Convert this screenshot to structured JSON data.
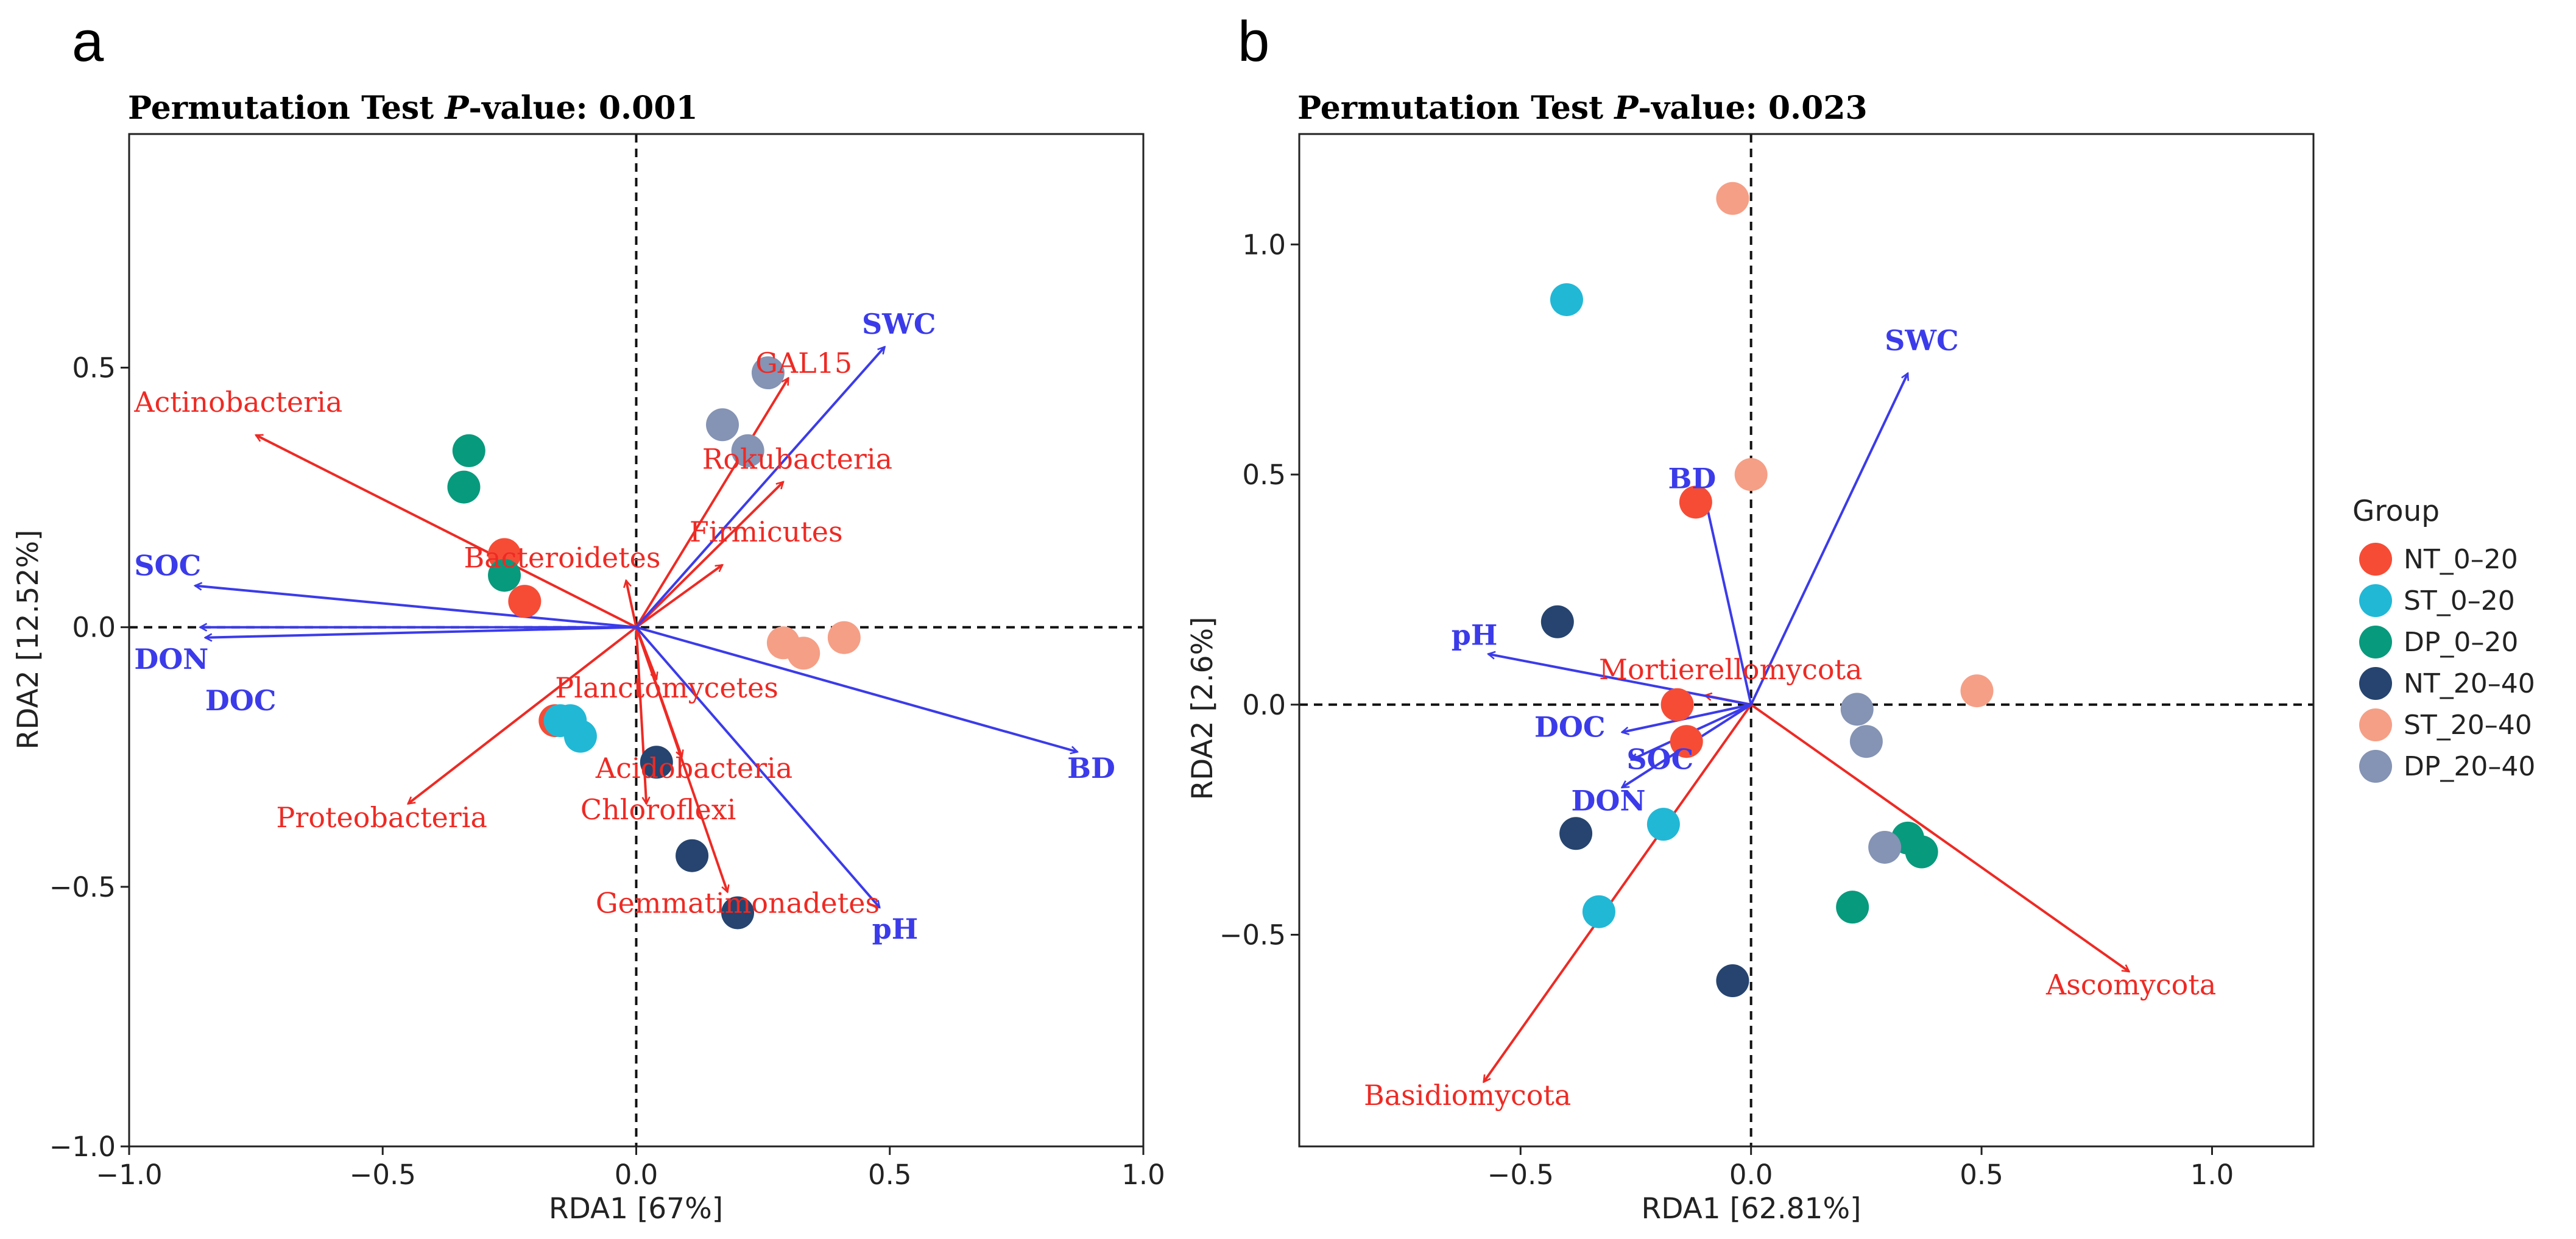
{
  "chart_data": [
    {
      "type": "scatter",
      "panel_letter": "a",
      "title_prefix": "Permutation Test ",
      "title_p": "P",
      "title_suffix": "-value: 0.001",
      "xlabel": "RDA1 [67%]",
      "ylabel": "RDA2 [12.52%]",
      "xlim": [
        -1.0,
        1.0
      ],
      "ylim": [
        -1.0,
        0.95
      ],
      "xticks": [
        -1.0,
        -0.5,
        0.0,
        0.5,
        1.0
      ],
      "xtick_labels": [
        "−1.0",
        "−0.5",
        "0.0",
        "0.5",
        "1.0"
      ],
      "yticks": [
        -1.0,
        -0.5,
        0.0,
        0.5
      ],
      "ytick_labels": [
        "−1.0",
        "−0.5",
        "0.0",
        "0.5"
      ],
      "species_vectors": [
        {
          "name": "Actinobacteria",
          "x": -0.75,
          "y": 0.37,
          "lx": -0.99,
          "ly": 0.415
        },
        {
          "name": "GAL15",
          "x": 0.3,
          "y": 0.48,
          "lx": 0.235,
          "ly": 0.49
        },
        {
          "name": "Rokubacteria",
          "x": 0.29,
          "y": 0.28,
          "lx": 0.13,
          "ly": 0.305
        },
        {
          "name": "Firmicutes",
          "x": 0.17,
          "y": 0.12,
          "lx": 0.105,
          "ly": 0.165
        },
        {
          "name": "Bacteroidetes",
          "x": -0.02,
          "y": 0.09,
          "lx": -0.34,
          "ly": 0.115
        },
        {
          "name": "Planctomycetes",
          "x": 0.04,
          "y": -0.1,
          "lx": -0.16,
          "ly": -0.135
        },
        {
          "name": "Acidobacteria",
          "x": 0.09,
          "y": -0.25,
          "lx": -0.08,
          "ly": -0.29
        },
        {
          "name": "Chloroflexi",
          "x": 0.02,
          "y": -0.34,
          "lx": -0.11,
          "ly": -0.37
        },
        {
          "name": "Gemmatimonadetes",
          "x": 0.18,
          "y": -0.51,
          "lx": -0.08,
          "ly": -0.55
        },
        {
          "name": "Proteobacteria",
          "x": -0.45,
          "y": -0.34,
          "lx": -0.71,
          "ly": -0.385
        }
      ],
      "env_vectors": [
        {
          "name": "SWC",
          "x": 0.49,
          "y": 0.54,
          "lx": 0.445,
          "ly": 0.565
        },
        {
          "name": "SOC",
          "x": -0.87,
          "y": 0.08,
          "lx": -0.99,
          "ly": 0.1
        },
        {
          "name": "DON",
          "x": -0.86,
          "y": 0.0,
          "lx": -0.99,
          "ly": -0.08
        },
        {
          "name": "DOC",
          "x": -0.85,
          "y": -0.02,
          "lx": -0.85,
          "ly": -0.16
        },
        {
          "name": "BD",
          "x": 0.87,
          "y": -0.24,
          "lx": 0.85,
          "ly": -0.29
        },
        {
          "name": "pH",
          "x": 0.48,
          "y": -0.54,
          "lx": 0.465,
          "ly": -0.6
        }
      ],
      "points": [
        {
          "group": "NT_0-20",
          "x": -0.26,
          "y": 0.14
        },
        {
          "group": "NT_0-20",
          "x": -0.22,
          "y": 0.05
        },
        {
          "group": "NT_0-20",
          "x": -0.16,
          "y": -0.18
        },
        {
          "group": "ST_0-20",
          "x": -0.15,
          "y": -0.18
        },
        {
          "group": "ST_0-20",
          "x": -0.13,
          "y": -0.18
        },
        {
          "group": "ST_0-20",
          "x": -0.11,
          "y": -0.21
        },
        {
          "group": "DP_0-20",
          "x": -0.33,
          "y": 0.34
        },
        {
          "group": "DP_0-20",
          "x": -0.34,
          "y": 0.27
        },
        {
          "group": "DP_0-20",
          "x": -0.26,
          "y": 0.1
        },
        {
          "group": "NT_20-40",
          "x": 0.04,
          "y": -0.26
        },
        {
          "group": "NT_20-40",
          "x": 0.11,
          "y": -0.44
        },
        {
          "group": "NT_20-40",
          "x": 0.2,
          "y": -0.55
        },
        {
          "group": "ST_20-40",
          "x": 0.29,
          "y": -0.03
        },
        {
          "group": "ST_20-40",
          "x": 0.33,
          "y": -0.05
        },
        {
          "group": "ST_20-40",
          "x": 0.41,
          "y": -0.02
        },
        {
          "group": "DP_20-40",
          "x": 0.17,
          "y": 0.39
        },
        {
          "group": "DP_20-40",
          "x": 0.22,
          "y": 0.34
        },
        {
          "group": "DP_20-40",
          "x": 0.26,
          "y": 0.49
        }
      ]
    },
    {
      "type": "scatter",
      "panel_letter": "b",
      "title_prefix": "Permutation Test ",
      "title_p": "P",
      "title_suffix": "-value: 0.023",
      "xlabel": "RDA1 [62.81%]",
      "ylabel": "RDA2 [2.6%]",
      "xlim": [
        -0.98,
        1.22
      ],
      "ylim": [
        -0.96,
        1.24
      ],
      "xticks": [
        -0.5,
        0.0,
        0.5,
        1.0
      ],
      "xtick_labels": [
        "−0.5",
        "0.0",
        "0.5",
        "1.0"
      ],
      "yticks": [
        -0.5,
        0.0,
        0.5,
        1.0
      ],
      "ytick_labels": [
        "−0.5",
        "0.0",
        "0.5",
        "1.0"
      ],
      "species_vectors": [
        {
          "name": "Mortierellomycota",
          "x": -0.1,
          "y": 0.02,
          "lx": -0.33,
          "ly": 0.055
        },
        {
          "name": "Ascomycota",
          "x": 0.82,
          "y": -0.58,
          "lx": 0.64,
          "ly": -0.63
        },
        {
          "name": "Basidiomycota",
          "x": -0.58,
          "y": -0.82,
          "lx": -0.84,
          "ly": -0.87
        }
      ],
      "env_vectors": [
        {
          "name": "SWC",
          "x": 0.34,
          "y": 0.72,
          "lx": 0.29,
          "ly": 0.77
        },
        {
          "name": "BD",
          "x": -0.1,
          "y": 0.45,
          "lx": -0.18,
          "ly": 0.47
        },
        {
          "name": "pH",
          "x": -0.57,
          "y": 0.11,
          "lx": -0.65,
          "ly": 0.13
        },
        {
          "name": "DOC",
          "x": -0.28,
          "y": -0.06,
          "lx": -0.47,
          "ly": -0.07
        },
        {
          "name": "SOC",
          "x": -0.26,
          "y": -0.12,
          "lx": -0.27,
          "ly": -0.14
        },
        {
          "name": "DON",
          "x": -0.28,
          "y": -0.18,
          "lx": -0.39,
          "ly": -0.23
        }
      ],
      "points": [
        {
          "group": "NT_0-20",
          "x": -0.12,
          "y": 0.44
        },
        {
          "group": "NT_0-20",
          "x": -0.16,
          "y": 0.0
        },
        {
          "group": "NT_0-20",
          "x": -0.14,
          "y": -0.08
        },
        {
          "group": "ST_0-20",
          "x": -0.4,
          "y": 0.88
        },
        {
          "group": "ST_0-20",
          "x": -0.19,
          "y": -0.26
        },
        {
          "group": "ST_0-20",
          "x": -0.33,
          "y": -0.45
        },
        {
          "group": "DP_0-20",
          "x": 0.34,
          "y": -0.29
        },
        {
          "group": "DP_0-20",
          "x": 0.37,
          "y": -0.32
        },
        {
          "group": "DP_0-20",
          "x": 0.22,
          "y": -0.44
        },
        {
          "group": "NT_20-40",
          "x": -0.42,
          "y": 0.18
        },
        {
          "group": "NT_20-40",
          "x": -0.38,
          "y": -0.28
        },
        {
          "group": "NT_20-40",
          "x": -0.04,
          "y": -0.6
        },
        {
          "group": "ST_20-40",
          "x": -0.04,
          "y": 1.1
        },
        {
          "group": "ST_20-40",
          "x": 0.0,
          "y": 0.5
        },
        {
          "group": "ST_20-40",
          "x": 0.49,
          "y": 0.03
        },
        {
          "group": "DP_20-40",
          "x": 0.23,
          "y": -0.01
        },
        {
          "group": "DP_20-40",
          "x": 0.25,
          "y": -0.08
        },
        {
          "group": "DP_20-40",
          "x": 0.29,
          "y": -0.31
        }
      ]
    }
  ],
  "legend": {
    "title": "Group",
    "items": [
      {
        "key": "NT_0-20",
        "label": "NT_0–20",
        "color": "#f64c36"
      },
      {
        "key": "ST_0-20",
        "label": "ST_0–20",
        "color": "#21b8d6"
      },
      {
        "key": "DP_0-20",
        "label": "DP_0–20",
        "color": "#089a7d"
      },
      {
        "key": "NT_20-40",
        "label": "NT_20–40",
        "color": "#26446f"
      },
      {
        "key": "ST_20-40",
        "label": "ST_20–40",
        "color": "#f59f86"
      },
      {
        "key": "DP_20-40",
        "label": "DP_20–40",
        "color": "#8593b4"
      }
    ]
  },
  "colors": {
    "species_arrow": "#ee2a24",
    "env_arrow": "#3b3bea",
    "axis": "#222222"
  }
}
